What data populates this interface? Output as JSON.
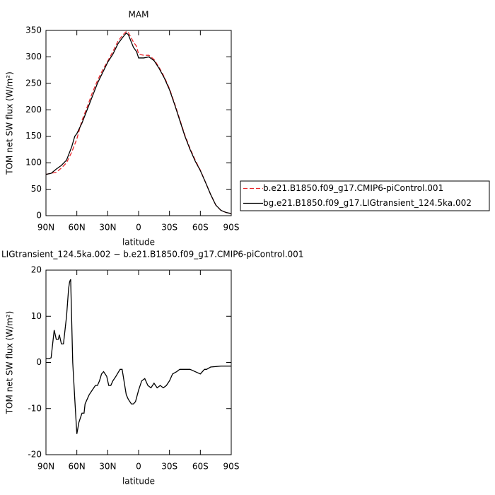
{
  "chart_data": [
    {
      "type": "line",
      "title": "MAM",
      "xlabel": "latitude",
      "ylabel": "TOM net SW flux (W/m²)",
      "x": [
        90,
        85,
        80,
        75,
        70,
        65,
        62,
        60,
        55,
        50,
        45,
        40,
        35,
        30,
        25,
        20,
        15,
        12,
        10,
        5,
        2,
        0,
        -5,
        -10,
        -15,
        -20,
        -25,
        -30,
        -35,
        -40,
        -45,
        -50,
        -55,
        -60,
        -65,
        -70,
        -75,
        -80,
        -85,
        -90
      ],
      "series": [
        {
          "name": "b.e21.B1850.f09_g17.CMIP6-piControl.001",
          "color": "#e8262b",
          "dashed": true,
          "values": [
            78,
            80,
            82,
            90,
            100,
            120,
            135,
            145,
            180,
            205,
            232,
            255,
            275,
            292,
            310,
            330,
            342,
            348,
            346,
            328,
            320,
            305,
            303,
            303,
            295,
            280,
            262,
            240,
            212,
            182,
            152,
            127,
            105,
            86,
            63,
            40,
            20,
            10,
            6,
            4
          ]
        },
        {
          "name": "bg.e21.B1850.f09_g17.LIGtransient_124.5ka.002",
          "color": "#000000",
          "dashed": false,
          "values": [
            78,
            80,
            88,
            95,
            105,
            130,
            150,
            155,
            175,
            200,
            225,
            250,
            270,
            290,
            305,
            325,
            338,
            345,
            342,
            318,
            310,
            298,
            298,
            300,
            293,
            278,
            260,
            238,
            210,
            180,
            150,
            125,
            103,
            85,
            63,
            40,
            20,
            10,
            6,
            4
          ]
        }
      ],
      "xlim": [
        90,
        -90
      ],
      "xticks": [
        {
          "value": 90,
          "label": "90N"
        },
        {
          "value": 60,
          "label": "60N"
        },
        {
          "value": 30,
          "label": "30N"
        },
        0,
        {
          "value": -30,
          "label": "30S"
        },
        {
          "value": -60,
          "label": "60S"
        },
        {
          "value": -90,
          "label": "90S"
        }
      ],
      "ylim": [
        0,
        350
      ],
      "yticks": [
        0,
        50,
        100,
        150,
        200,
        250,
        300,
        350
      ],
      "legend": "right"
    },
    {
      "type": "line",
      "title": "LIGtransient_124.5ka.002 − b.e21.B1850.f09_g17.CMIP6-piControl.001",
      "xlabel": "latitude",
      "ylabel": "TOM net SW flux (W/m²)",
      "x": [
        90,
        87,
        85,
        82,
        80,
        78,
        77,
        75,
        73,
        70,
        68,
        67,
        66,
        64,
        62,
        60,
        58,
        55,
        53,
        52,
        50,
        48,
        45,
        42,
        40,
        38,
        36,
        34,
        31,
        29,
        27,
        25,
        22,
        18,
        16,
        12,
        10,
        7,
        5,
        3,
        0,
        -3,
        -6,
        -9,
        -12,
        -15,
        -18,
        -21,
        -24,
        -27,
        -30,
        -33,
        -37,
        -40,
        -45,
        -50,
        -55,
        -60,
        -64,
        -66,
        -70,
        -75,
        -80,
        -85,
        -90
      ],
      "series": [
        {
          "color": "#000000",
          "dashed": false,
          "values": [
            0.8,
            0.8,
            1,
            7,
            5,
            5,
            6,
            4,
            4,
            10,
            16,
            17.5,
            18,
            0,
            -8,
            -15.5,
            -13,
            -11,
            -11,
            -9,
            -8,
            -7,
            -6,
            -5,
            -5,
            -4,
            -2.5,
            -2,
            -3,
            -5,
            -5,
            -4,
            -3,
            -1.5,
            -1.5,
            -7,
            -8,
            -9,
            -9,
            -8.5,
            -6,
            -4,
            -3.5,
            -5,
            -5.5,
            -4.5,
            -5.5,
            -5,
            -5.5,
            -5,
            -4,
            -2.5,
            -2,
            -1.5,
            -1.5,
            -1.5,
            -2,
            -2.5,
            -1.5,
            -1.5,
            -1,
            -0.9,
            -0.8,
            -0.8,
            -0.8
          ]
        }
      ],
      "xlim": [
        90,
        -90
      ],
      "xticks": [
        {
          "value": 90,
          "label": "90N"
        },
        {
          "value": 60,
          "label": "60N"
        },
        {
          "value": 30,
          "label": "30N"
        },
        0,
        {
          "value": -30,
          "label": "30S"
        },
        {
          "value": -60,
          "label": "60S"
        },
        {
          "value": -90,
          "label": "90S"
        }
      ],
      "ylim": [
        -20,
        20
      ],
      "yticks": [
        -20,
        -10,
        0,
        10,
        20
      ]
    }
  ]
}
